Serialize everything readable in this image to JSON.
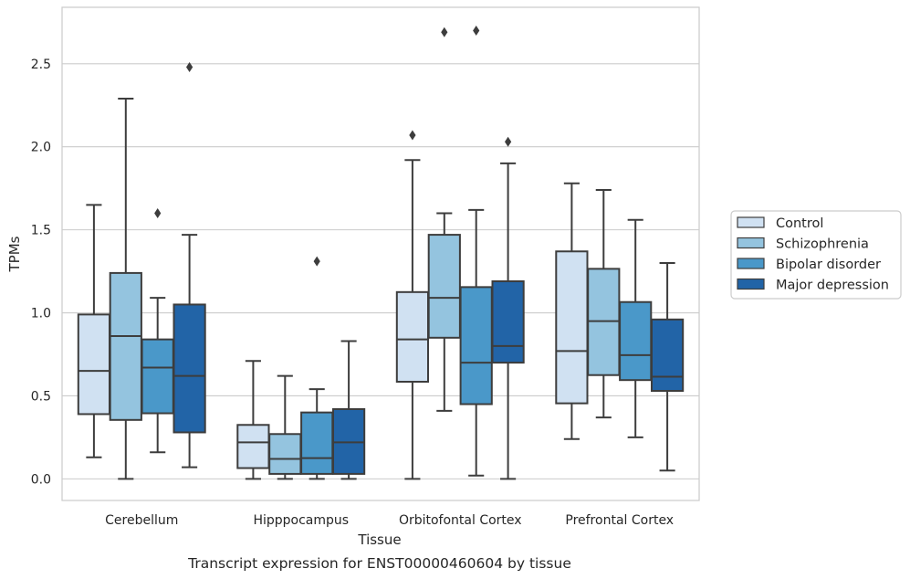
{
  "chart_data": {
    "type": "box",
    "title": "",
    "caption": "Transcript expression for ENST00000460604 by tissue",
    "xlabel": "Tissue",
    "ylabel": "TPMs",
    "ylim": [
      -0.13,
      2.84
    ],
    "yticks": [
      0.0,
      0.5,
      1.0,
      1.5,
      2.0,
      2.5
    ],
    "ytick_labels": [
      "0.0",
      "0.5",
      "1.0",
      "1.5",
      "2.0",
      "2.5"
    ],
    "grid": "horizontal",
    "legend_position": "right",
    "categories": [
      "Cerebellum",
      "Hipppocampus",
      "Orbitofontal Cortex",
      "Prefrontal Cortex"
    ],
    "series": [
      {
        "name": "Control",
        "color": "#d0e1f2",
        "boxes": [
          {
            "whislo": 0.13,
            "q1": 0.39,
            "med": 0.65,
            "q3": 0.99,
            "whishi": 1.65,
            "fliers": []
          },
          {
            "whislo": 0.0,
            "q1": 0.065,
            "med": 0.22,
            "q3": 0.325,
            "whishi": 0.71,
            "fliers": []
          },
          {
            "whislo": 0.0,
            "q1": 0.585,
            "med": 0.84,
            "q3": 1.125,
            "whishi": 1.92,
            "fliers": [
              2.07
            ]
          },
          {
            "whislo": 0.24,
            "q1": 0.455,
            "med": 0.77,
            "q3": 1.37,
            "whishi": 1.78,
            "fliers": []
          }
        ]
      },
      {
        "name": "Schizophrenia",
        "color": "#94c4df",
        "boxes": [
          {
            "whislo": 0.0,
            "q1": 0.355,
            "med": 0.86,
            "q3": 1.24,
            "whishi": 2.29,
            "fliers": []
          },
          {
            "whislo": 0.0,
            "q1": 0.03,
            "med": 0.12,
            "q3": 0.27,
            "whishi": 0.62,
            "fliers": []
          },
          {
            "whislo": 0.41,
            "q1": 0.85,
            "med": 1.09,
            "q3": 1.47,
            "whishi": 1.6,
            "fliers": [
              2.69
            ]
          },
          {
            "whislo": 0.37,
            "q1": 0.625,
            "med": 0.95,
            "q3": 1.265,
            "whishi": 1.74,
            "fliers": []
          }
        ]
      },
      {
        "name": "Bipolar disorder",
        "color": "#4a98c9",
        "boxes": [
          {
            "whislo": 0.16,
            "q1": 0.395,
            "med": 0.67,
            "q3": 0.84,
            "whishi": 1.09,
            "fliers": [
              1.6
            ]
          },
          {
            "whislo": 0.0,
            "q1": 0.03,
            "med": 0.125,
            "q3": 0.4,
            "whishi": 0.54,
            "fliers": [
              1.31
            ]
          },
          {
            "whislo": 0.02,
            "q1": 0.45,
            "med": 0.7,
            "q3": 1.155,
            "whishi": 1.62,
            "fliers": [
              2.7
            ]
          },
          {
            "whislo": 0.25,
            "q1": 0.595,
            "med": 0.745,
            "q3": 1.065,
            "whishi": 1.56,
            "fliers": []
          }
        ]
      },
      {
        "name": "Major depression",
        "color": "#2264a7",
        "boxes": [
          {
            "whislo": 0.07,
            "q1": 0.28,
            "med": 0.62,
            "q3": 1.05,
            "whishi": 1.47,
            "fliers": [
              2.48
            ]
          },
          {
            "whislo": 0.0,
            "q1": 0.03,
            "med": 0.22,
            "q3": 0.42,
            "whishi": 0.83,
            "fliers": []
          },
          {
            "whislo": 0.0,
            "q1": 0.7,
            "med": 0.8,
            "q3": 1.19,
            "whishi": 1.9,
            "fliers": [
              2.03
            ]
          },
          {
            "whislo": 0.05,
            "q1": 0.53,
            "med": 0.615,
            "q3": 0.96,
            "whishi": 1.3,
            "fliers": []
          }
        ]
      }
    ]
  }
}
